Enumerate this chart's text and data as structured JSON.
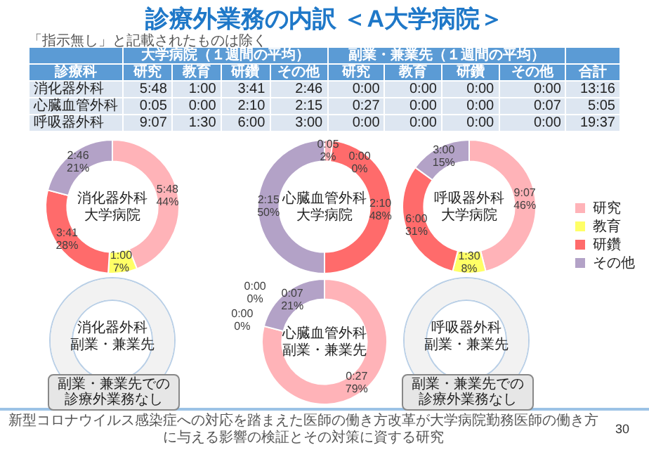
{
  "chart_data": [
    {
      "type": "other",
      "title": "診療外業務の内訳 ＜A大学病院＞",
      "subtitle": "「指示無し」と記載されたものは除く",
      "ylabel": "診療科",
      "categories": [
        "研究",
        "教育",
        "研鑽",
        "その他",
        "研究",
        "教育",
        "研鑽",
        "その他",
        "合計"
      ],
      "y_categories": [
        "消化器外科",
        "心臓血管外科",
        "呼吸器外科"
      ],
      "cell_labels": [
        [
          "5:48",
          "1:00",
          "3:41",
          "2:46",
          "0:00",
          "0:00",
          "0:00",
          "0:00",
          "13:16"
        ],
        [
          "0:05",
          "0:00",
          "2:10",
          "2:15",
          "0:27",
          "0:00",
          "0:00",
          "0:07",
          "5:05"
        ],
        [
          "9:07",
          "1:30",
          "6:00",
          "3:00",
          "0:00",
          "0:00",
          "0:00",
          "0:00",
          "19:37"
        ]
      ],
      "annotations": [
        "大学病院（１週間の平均）",
        "副業・兼業先（１週間の平均）",
        "新型コロナウイルス感染症への対応を踏まえた医師の働き方改革が大学病院勤務医師の働き方に与える影響の検証とその対策に資する研究",
        "30"
      ]
    },
    {
      "type": "donut",
      "title": "消化器外科",
      "subtitle": "大学病院",
      "values": [
        44,
        7,
        28,
        21
      ],
      "colors": [
        "#ffb3b8",
        "#ffff66",
        "#ff6b6b",
        "#b3a2c7"
      ],
      "value_labels": [
        "5:48\n44%",
        "1:00\n7%",
        "3:41\n28%",
        "2:46\n21%"
      ]
    },
    {
      "type": "donut",
      "title": "心臓血管外科",
      "subtitle": "大学病院",
      "values": [
        2,
        0,
        48,
        50
      ],
      "colors": [
        "#ffb3b8",
        "#ffff66",
        "#ff6b6b",
        "#b3a2c7"
      ],
      "value_labels": [
        "0:05\n2%",
        "0:00\n0%",
        "2:10\n48%",
        "2:15\n50%"
      ]
    },
    {
      "type": "donut",
      "title": "呼吸器外科",
      "subtitle": "大学病院",
      "categories": [
        "研究",
        "教育",
        "研鑽",
        "その他"
      ],
      "values": [
        46,
        8,
        31,
        15
      ],
      "colors": [
        "#ffb3b8",
        "#ffff66",
        "#ff6b6b",
        "#b3a2c7"
      ],
      "value_labels": [
        "9:07\n46%",
        "1:30\n8%",
        "6:00\n31%",
        "3:00\n15%"
      ],
      "legend": "right"
    },
    {
      "type": "other",
      "title": "消化器外科",
      "subtitle": "副業・兼業先",
      "annotations": [
        "副業・兼業先での",
        "診療外業務なし"
      ]
    },
    {
      "type": "donut",
      "title": "心臓血管外科",
      "subtitle": "副業・兼業先",
      "values": [
        79,
        0,
        0,
        21
      ],
      "colors": [
        "#ffb3b8",
        "#ffff66",
        "#ff6b6b",
        "#b3a2c7"
      ],
      "value_labels": [
        "0:27\n79%",
        "0:00\n0%",
        "0:00\n0%",
        "0:07\n21%"
      ]
    },
    {
      "type": "other",
      "title": "呼吸器外科",
      "subtitle": "副業・兼業先",
      "annotations": [
        "副業・兼業先での",
        "診療外業務なし"
      ]
    }
  ]
}
